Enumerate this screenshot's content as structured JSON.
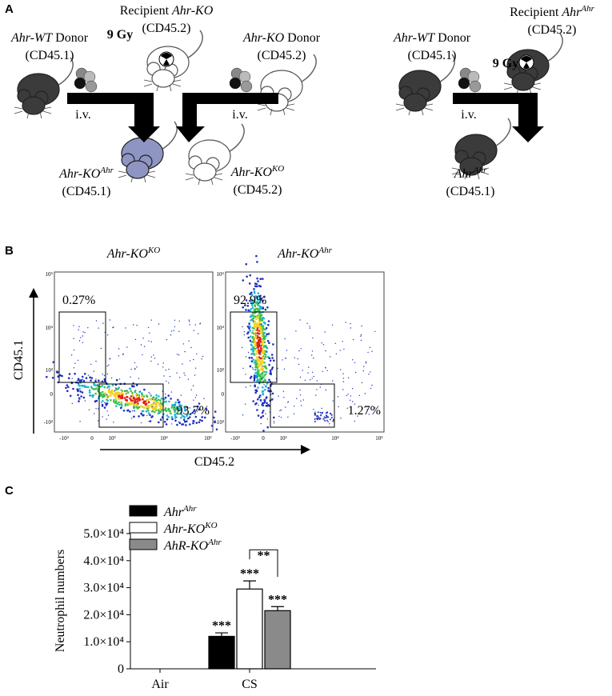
{
  "panel_a": {
    "label": "A",
    "labels": [
      {
        "lines": [
          [
            {
              "t": "Recipient "
            },
            {
              "t": "Ahr-KO",
              "i": true
            }
          ],
          [
            {
              "t": "(CD45.2)"
            }
          ]
        ]
      },
      {
        "lines": [
          [
            {
              "t": "9 Gy",
              "b": true
            }
          ]
        ]
      },
      {
        "lines": [
          [
            {
              "t": "Ahr-WT",
              "i": true
            },
            {
              "t": " Donor"
            }
          ],
          [
            {
              "t": "(CD45.1)"
            }
          ]
        ]
      },
      {
        "lines": [
          [
            {
              "t": "Ahr-KO",
              "i": true
            },
            {
              "t": " Donor"
            }
          ],
          [
            {
              "t": "(CD45.2)"
            }
          ]
        ]
      },
      {
        "lines": [
          [
            {
              "t": "i.v."
            }
          ]
        ]
      },
      {
        "lines": [
          [
            {
              "t": "i.v."
            }
          ]
        ]
      },
      {
        "lines": [
          [
            {
              "t": "Ahr-KO",
              "i": true
            },
            {
              "t": "Ahr",
              "i": true,
              "sup": true
            }
          ],
          [
            {
              "t": "(CD45.1)"
            }
          ]
        ]
      },
      {
        "lines": [
          [
            {
              "t": "Ahr-KO",
              "i": true
            },
            {
              "t": "KO",
              "i": true,
              "sup": true
            }
          ],
          [
            {
              "t": "(CD45.2)"
            }
          ]
        ]
      },
      {
        "lines": [
          [
            {
              "t": "Recipient "
            },
            {
              "t": "Ahr",
              "i": true
            },
            {
              "t": "Ahr",
              "i": true,
              "sup": true
            }
          ],
          [
            {
              "t": "(CD45.2)"
            }
          ]
        ]
      },
      {
        "lines": [
          [
            {
              "t": "Ahr-WT",
              "i": true
            },
            {
              "t": " Donor"
            }
          ],
          [
            {
              "t": "(CD45.1)"
            }
          ]
        ]
      },
      {
        "lines": [
          [
            {
              "t": "9 Gy",
              "b": true
            }
          ]
        ]
      },
      {
        "lines": [
          [
            {
              "t": "i.v."
            }
          ]
        ]
      },
      {
        "lines": [
          [
            {
              "t": "Ahr",
              "i": true
            },
            {
              "t": "Ahr",
              "i": true,
              "sup": true
            }
          ],
          [
            {
              "t": "(CD45.1)"
            }
          ]
        ]
      }
    ]
  },
  "panel_b": {
    "label": "B",
    "plots": [
      {
        "title": [
          {
            "t": "Ahr-KO",
            "i": true
          },
          {
            "t": "KO",
            "i": true,
            "sup": true
          }
        ],
        "upper_gate": "0.27%",
        "lower_gate": "93.7%"
      },
      {
        "title": [
          {
            "t": "Ahr-KO",
            "i": true
          },
          {
            "t": "Ahr",
            "i": true,
            "sup": true
          }
        ],
        "upper_gate": "92.9%",
        "lower_gate": "1.27%"
      }
    ],
    "y_label": "CD45.1",
    "x_label": "CD45.2",
    "yticks": [
      "10⁵",
      "10⁴",
      "10³",
      "0",
      "-10³"
    ],
    "xticks": [
      "-10³",
      "0",
      "10³",
      "10⁴",
      "10⁵"
    ]
  },
  "chart_data": {
    "type": "bar",
    "panel_label": "C",
    "y_label": "Neutrophil numbers",
    "categories": [
      "Air",
      "CS"
    ],
    "series": [
      {
        "name": "Ahr",
        "name_sup": "Ahr",
        "color": "#000000",
        "values": [
          0,
          12000
        ],
        "errors": [
          0,
          1300
        ],
        "significance": [
          null,
          "***"
        ]
      },
      {
        "name": "Ahr-KO",
        "name_sup": "KO",
        "color": "#ffffff",
        "values": [
          0,
          29500
        ],
        "errors": [
          0,
          3000
        ],
        "significance": [
          null,
          "***"
        ]
      },
      {
        "name": "AhR-KO",
        "name_sup": "Ahr",
        "color": "#8a8a8a",
        "values": [
          0,
          21500
        ],
        "errors": [
          0,
          1500
        ],
        "significance": [
          null,
          "***"
        ]
      }
    ],
    "comparison": {
      "between": [
        1,
        2
      ],
      "label": "**"
    },
    "ylim": [
      0,
      50000
    ],
    "yticks": [
      0,
      {
        "value": 10000,
        "label": "1.0×10⁴"
      },
      {
        "value": 20000,
        "label": "2.0×10⁴"
      },
      {
        "value": 30000,
        "label": "3.0×10⁴"
      },
      {
        "value": 40000,
        "label": "4.0×10⁴"
      },
      {
        "value": 50000,
        "label": "5.0×10⁴"
      }
    ]
  }
}
